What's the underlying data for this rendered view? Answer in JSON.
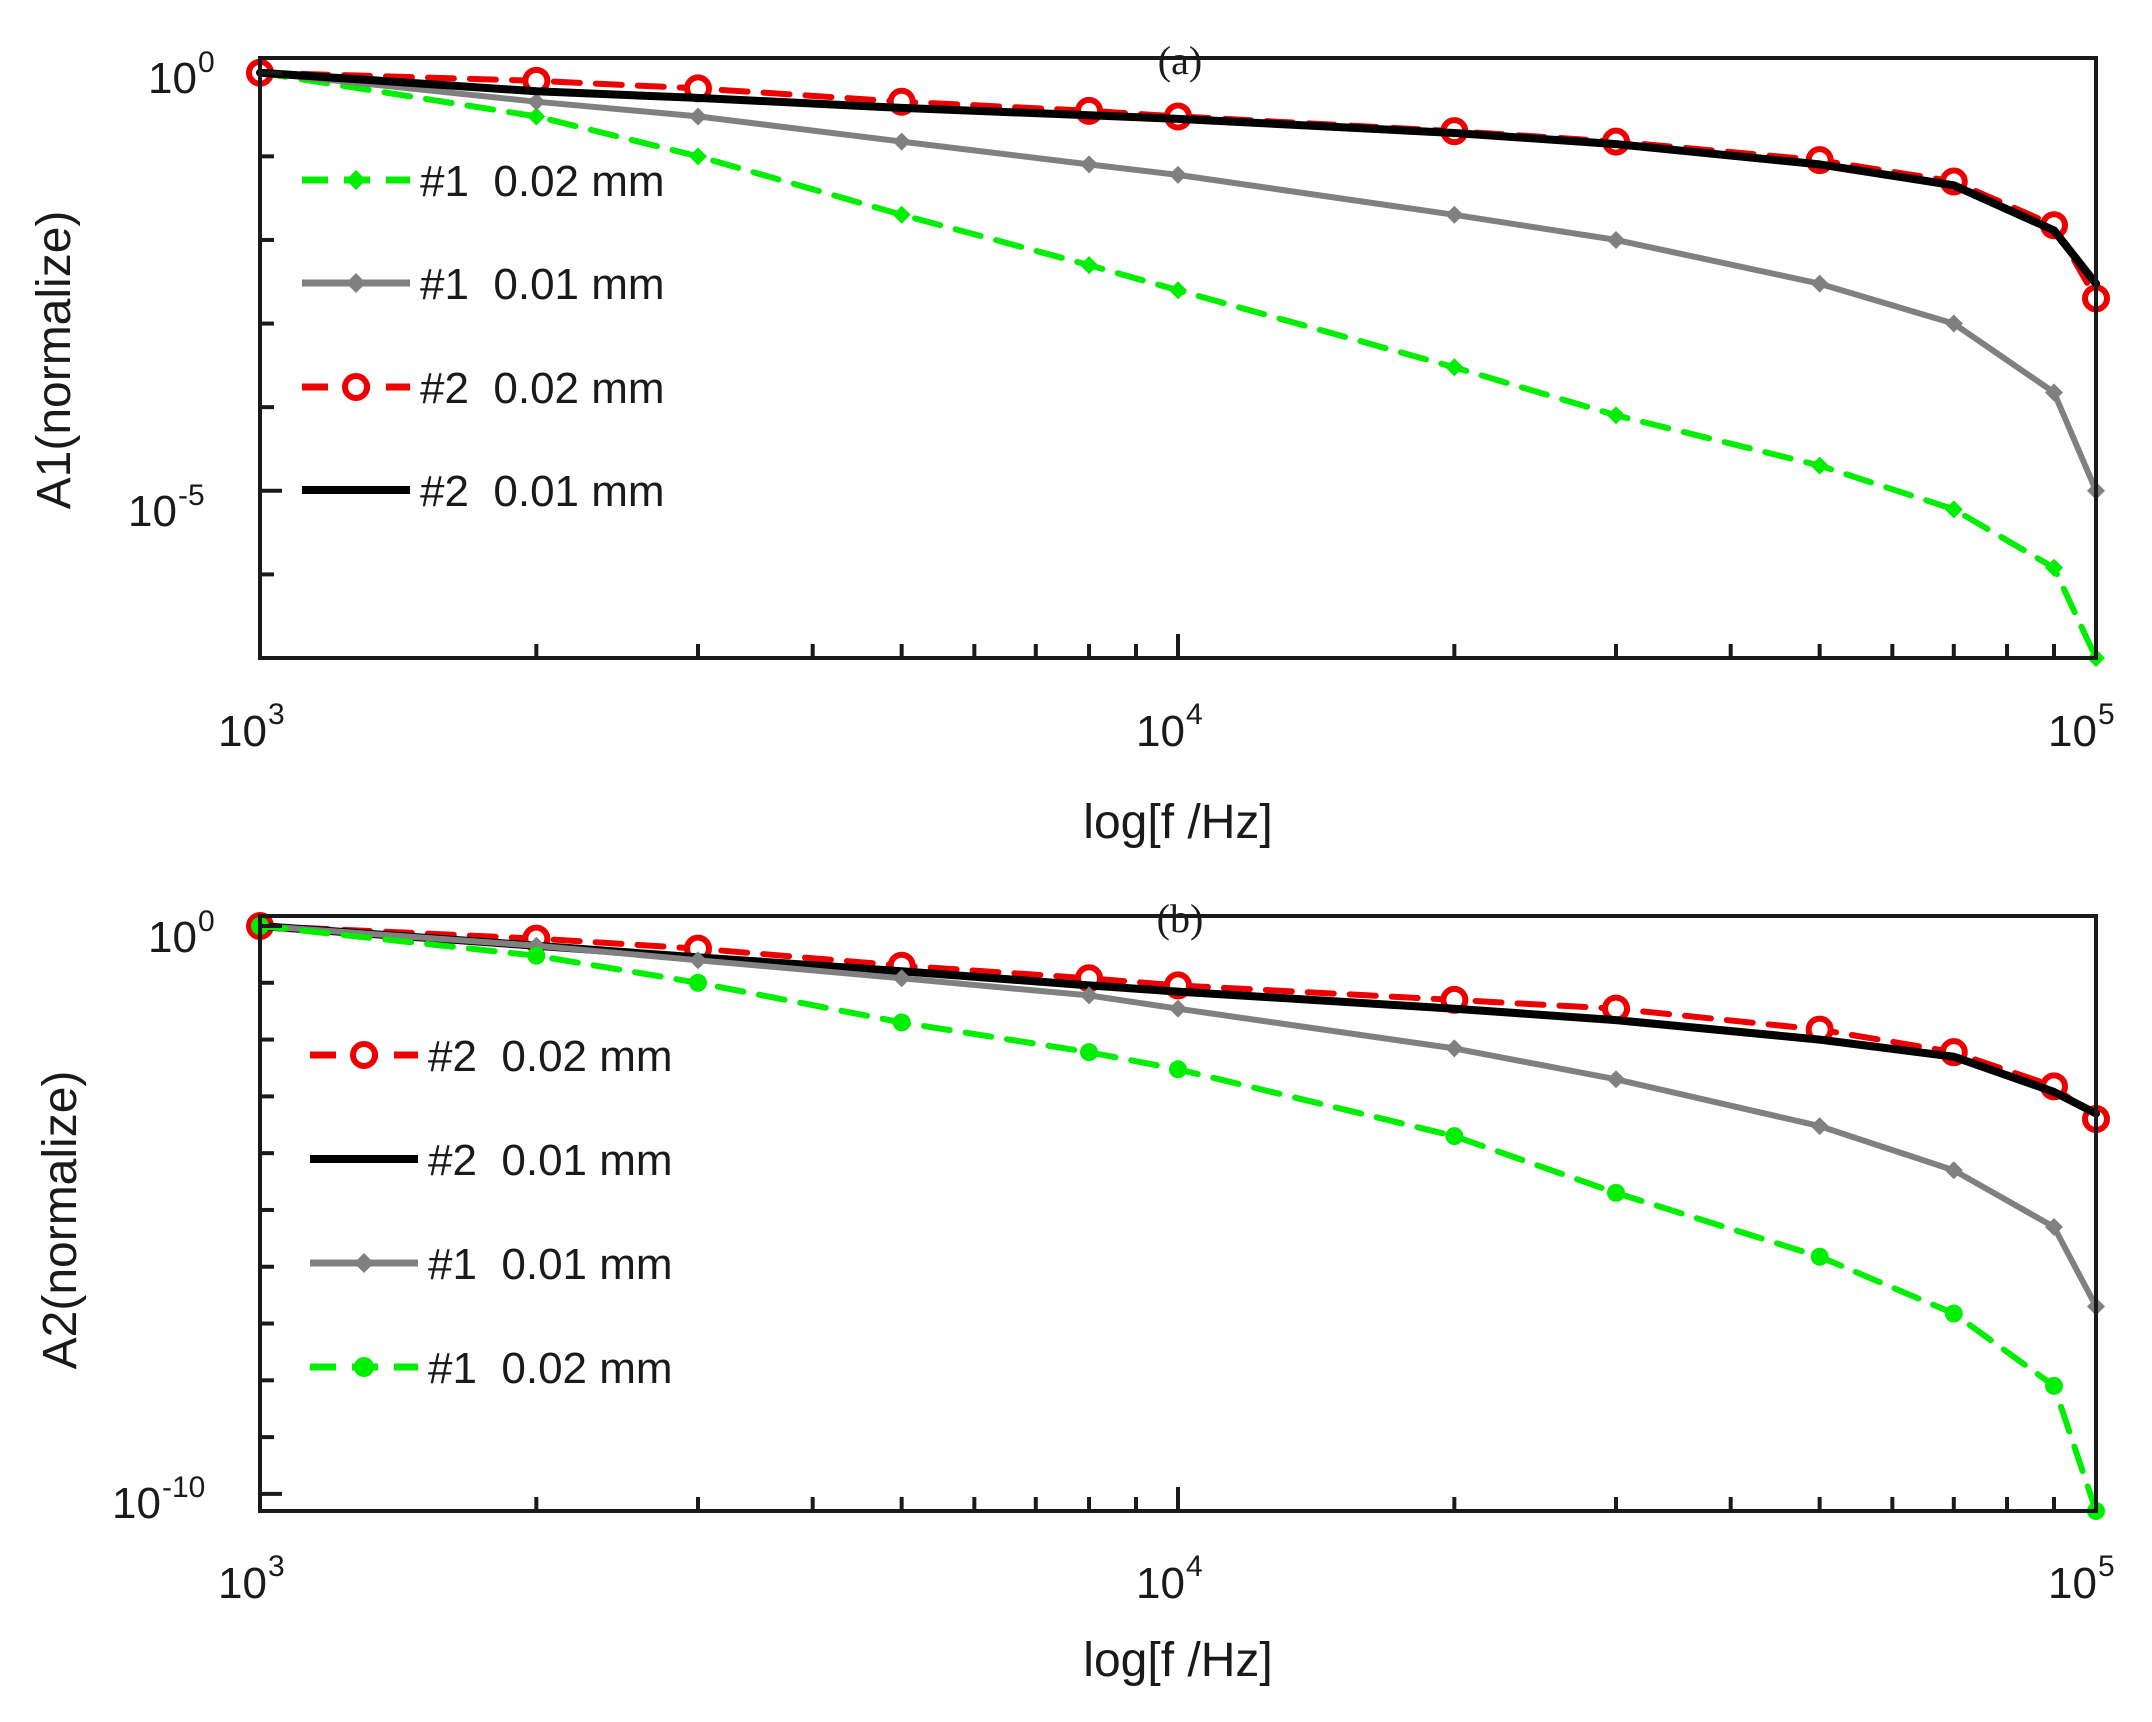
{
  "chart_data": [
    {
      "type": "line",
      "panel_label": "(a)",
      "xlabel": "log[f /Hz]",
      "ylabel": "A1(normalize)",
      "x_scale": "log",
      "y_scale": "log",
      "xlim": [
        1000,
        100000
      ],
      "ylim": [
        1e-07,
        1.5
      ],
      "x_ticks": [
        {
          "base": "10",
          "exp": "3",
          "value": 1000
        },
        {
          "base": "10",
          "exp": "4",
          "value": 10000
        },
        {
          "base": "10",
          "exp": "5",
          "value": 100000
        }
      ],
      "y_ticks": [
        {
          "base": "10",
          "exp": "0",
          "value": 1
        },
        {
          "base": "10",
          "exp": "-5",
          "value": 1e-05
        }
      ],
      "legend_position": "left",
      "series": [
        {
          "name": "#1  0.02 mm",
          "color": "#00ee00",
          "line": "dashed",
          "marker": "diamond",
          "x": [
            1000,
            2000,
            3000,
            5000,
            8000,
            10000,
            20000,
            30000,
            50000,
            70000,
            90000,
            100000
          ],
          "y": [
            1,
            0.3,
            0.1,
            0.02,
            0.005,
            0.0025,
            0.0003,
            8e-05,
            2e-05,
            6e-06,
            1.2e-06,
            1e-07
          ]
        },
        {
          "name": "#1  0.01 mm",
          "color": "#808080",
          "line": "solid",
          "marker": "diamond",
          "x": [
            1000,
            2000,
            3000,
            5000,
            8000,
            10000,
            20000,
            30000,
            50000,
            70000,
            90000,
            100000
          ],
          "y": [
            1,
            0.45,
            0.3,
            0.15,
            0.08,
            0.06,
            0.02,
            0.01,
            0.003,
            0.001,
            0.00015,
            1e-05
          ]
        },
        {
          "name": "#2  0.02 mm",
          "color": "#ee0000",
          "line": "dashed",
          "marker": "circle",
          "x": [
            1000,
            2000,
            3000,
            5000,
            8000,
            10000,
            20000,
            30000,
            50000,
            70000,
            90000,
            100000
          ],
          "y": [
            1,
            0.8,
            0.65,
            0.45,
            0.35,
            0.3,
            0.2,
            0.15,
            0.09,
            0.05,
            0.015,
            0.002
          ]
        },
        {
          "name": "#2  0.01 mm",
          "color": "#000000",
          "line": "solid",
          "marker": "none",
          "x": [
            1000,
            2000,
            3000,
            5000,
            8000,
            10000,
            20000,
            30000,
            50000,
            70000,
            90000,
            100000
          ],
          "y": [
            1,
            0.6,
            0.5,
            0.38,
            0.31,
            0.28,
            0.19,
            0.14,
            0.08,
            0.045,
            0.013,
            0.003
          ]
        }
      ]
    },
    {
      "type": "line",
      "panel_label": "(b)",
      "xlabel": "log[f /Hz]",
      "ylabel": "A2(normalize)",
      "x_scale": "log",
      "y_scale": "log",
      "xlim": [
        1000,
        100000
      ],
      "ylim": [
        5e-11,
        1.5
      ],
      "x_ticks": [
        {
          "base": "10",
          "exp": "3",
          "value": 1000
        },
        {
          "base": "10",
          "exp": "4",
          "value": 10000
        },
        {
          "base": "10",
          "exp": "5",
          "value": 100000
        }
      ],
      "y_ticks": [
        {
          "base": "10",
          "exp": "0",
          "value": 1
        },
        {
          "base": "10",
          "exp": "-10",
          "value": 1e-10
        }
      ],
      "legend_position": "left",
      "series": [
        {
          "name": "#2  0.02 mm",
          "color": "#ee0000",
          "line": "dashed",
          "marker": "circle",
          "x": [
            1000,
            2000,
            3000,
            5000,
            8000,
            10000,
            20000,
            30000,
            50000,
            70000,
            90000,
            100000
          ],
          "y": [
            1,
            0.6,
            0.4,
            0.2,
            0.12,
            0.09,
            0.05,
            0.035,
            0.015,
            0.006,
            0.0015,
            0.0004
          ]
        },
        {
          "name": "#2  0.01 mm",
          "color": "#000000",
          "line": "solid",
          "marker": "none",
          "x": [
            1000,
            2000,
            3000,
            5000,
            8000,
            10000,
            20000,
            30000,
            50000,
            70000,
            90000,
            100000
          ],
          "y": [
            1,
            0.45,
            0.28,
            0.16,
            0.09,
            0.07,
            0.035,
            0.022,
            0.01,
            0.005,
            0.0012,
            0.0005
          ]
        },
        {
          "name": "#1  0.01 mm",
          "color": "#808080",
          "line": "solid",
          "marker": "diamond",
          "x": [
            1000,
            2000,
            3000,
            5000,
            8000,
            10000,
            20000,
            30000,
            50000,
            70000,
            90000,
            100000
          ],
          "y": [
            1,
            0.45,
            0.25,
            0.12,
            0.06,
            0.035,
            0.007,
            0.002,
            0.0003,
            5e-05,
            5e-06,
            2e-07
          ]
        },
        {
          "name": "#1  0.02 mm",
          "color": "#00ee00",
          "line": "dashed",
          "marker": "circle",
          "x": [
            1000,
            2000,
            3000,
            5000,
            8000,
            10000,
            20000,
            30000,
            50000,
            70000,
            90000,
            100000
          ],
          "y": [
            1,
            0.3,
            0.1,
            0.02,
            0.006,
            0.003,
            0.0002,
            2e-05,
            1.5e-06,
            1.5e-07,
            8e-09,
            5e-11
          ]
        }
      ]
    }
  ]
}
